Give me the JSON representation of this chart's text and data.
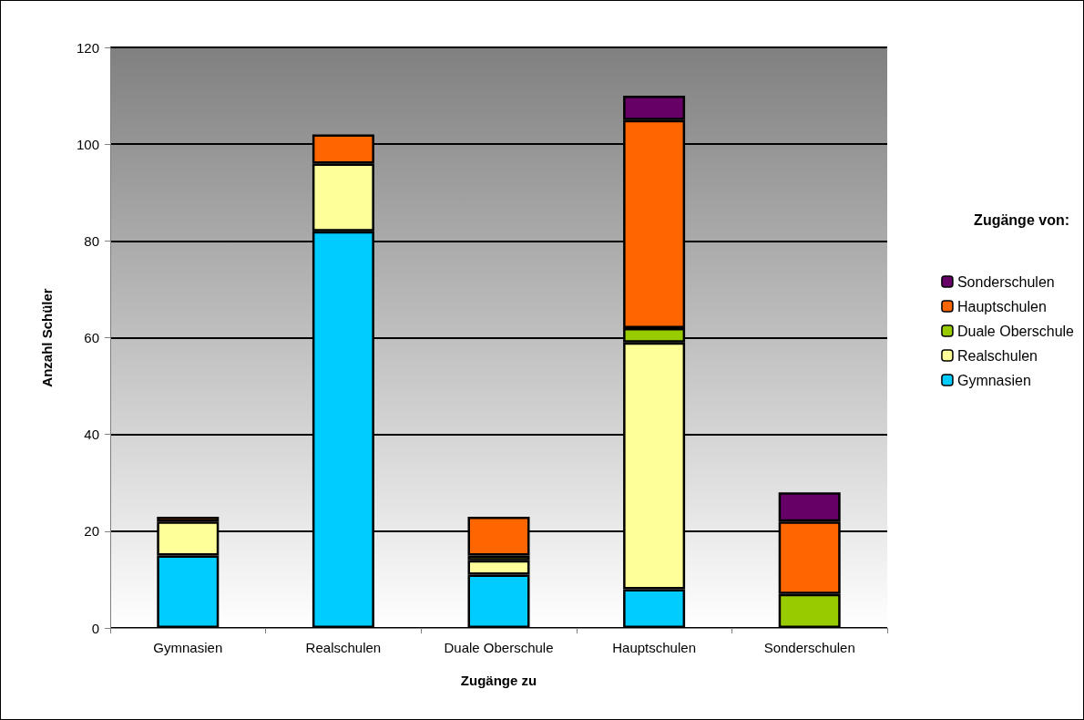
{
  "chart_data": {
    "type": "bar",
    "stacked": true,
    "xlabel": "Zugänge zu",
    "ylabel": "Anzahl Schüler",
    "legend_title": "Zugänge von:",
    "categories": [
      "Gymnasien",
      "Realschulen",
      "Duale Oberschule",
      "Hauptschulen",
      "Sonderschulen"
    ],
    "series": [
      {
        "name": "Gymnasien",
        "color": "#00ccff",
        "values": [
          15,
          82,
          11,
          8,
          null
        ]
      },
      {
        "name": "Realschulen",
        "color": "#ffff99",
        "values": [
          7,
          14,
          3,
          51,
          null
        ]
      },
      {
        "name": "Duale Oberschule",
        "color": "#99cc00",
        "values": [
          null,
          null,
          1,
          3,
          7
        ]
      },
      {
        "name": "Hauptschulen",
        "color": "#ff6600",
        "values": [
          1,
          6,
          8,
          43,
          15
        ]
      },
      {
        "name": "Sonderschulen",
        "color": "#660066",
        "values": [
          null,
          null,
          null,
          5,
          6
        ]
      }
    ],
    "ylim": [
      0,
      120
    ],
    "yticks": [
      0,
      20,
      40,
      60,
      80,
      100,
      120
    ],
    "grid": "y",
    "legend": "right"
  }
}
